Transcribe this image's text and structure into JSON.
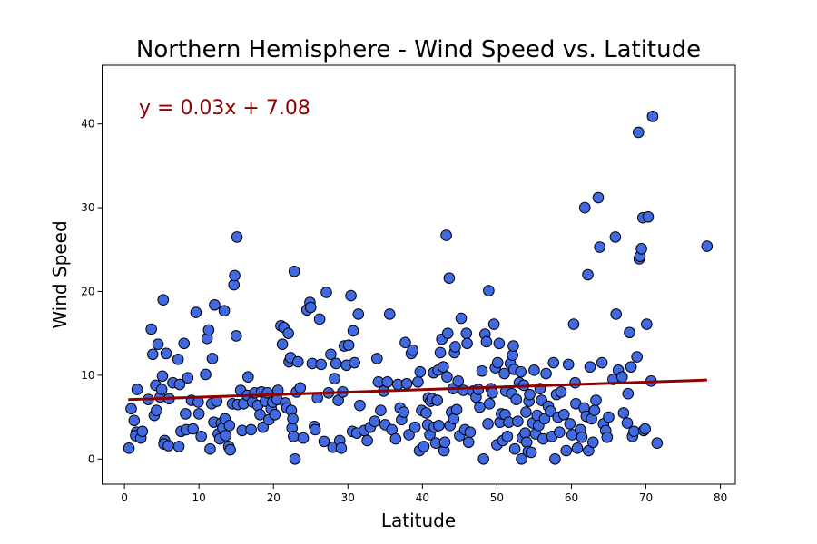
{
  "chart_data": {
    "type": "scatter",
    "title": "Northern Hemisphere - Wind Speed vs. Latitude",
    "xlabel": "Latitude",
    "ylabel": "Wind Speed",
    "xlim": [
      -3,
      82
    ],
    "ylim": [
      -3,
      47
    ],
    "xticks": [
      0,
      10,
      20,
      30,
      40,
      50,
      60,
      70,
      80
    ],
    "yticks": [
      0,
      10,
      20,
      30,
      40
    ],
    "grid": false,
    "point_color": "#4169e1",
    "point_edge_color": "#000000",
    "regression": {
      "equation": "y = 0.03x + 7.08",
      "slope": 0.03,
      "intercept": 7.08,
      "x_range": [
        0.5,
        78.2
      ],
      "color": "#8b0000"
    },
    "points": [
      [
        0.6,
        1.3
      ],
      [
        0.9,
        6.0
      ],
      [
        1.3,
        4.6
      ],
      [
        1.7,
        8.3
      ],
      [
        1.6,
        3.2
      ],
      [
        1.5,
        2.8
      ],
      [
        2.2,
        2.5
      ],
      [
        2.4,
        3.3
      ],
      [
        3.2,
        7.1
      ],
      [
        3.6,
        15.5
      ],
      [
        3.8,
        12.5
      ],
      [
        4.2,
        8.8
      ],
      [
        4.0,
        5.2
      ],
      [
        4.3,
        5.8
      ],
      [
        4.5,
        13.7
      ],
      [
        4.8,
        7.4
      ],
      [
        5.0,
        8.3
      ],
      [
        5.2,
        19.0
      ],
      [
        5.1,
        9.9
      ],
      [
        5.4,
        2.2
      ],
      [
        5.6,
        12.6
      ],
      [
        5.3,
        1.8
      ],
      [
        5.9,
        1.6
      ],
      [
        6.0,
        7.2
      ],
      [
        6.5,
        9.1
      ],
      [
        7.2,
        11.9
      ],
      [
        7.4,
        8.9
      ],
      [
        7.6,
        3.3
      ],
      [
        7.3,
        1.5
      ],
      [
        8.0,
        13.8
      ],
      [
        8.2,
        5.4
      ],
      [
        8.3,
        3.5
      ],
      [
        8.5,
        9.7
      ],
      [
        9.0,
        7.0
      ],
      [
        9.2,
        3.6
      ],
      [
        9.6,
        17.5
      ],
      [
        9.9,
        6.8
      ],
      [
        10.0,
        5.4
      ],
      [
        10.3,
        2.7
      ],
      [
        10.9,
        10.1
      ],
      [
        11.1,
        14.4
      ],
      [
        11.3,
        15.4
      ],
      [
        11.5,
        1.2
      ],
      [
        11.7,
        6.6
      ],
      [
        11.8,
        12.0
      ],
      [
        12.0,
        4.4
      ],
      [
        12.1,
        18.4
      ],
      [
        12.4,
        6.9
      ],
      [
        12.6,
        3.0
      ],
      [
        12.8,
        2.4
      ],
      [
        13.0,
        4.3
      ],
      [
        13.2,
        3.7
      ],
      [
        13.4,
        17.7
      ],
      [
        13.5,
        4.8
      ],
      [
        13.6,
        2.8
      ],
      [
        14.0,
        1.5
      ],
      [
        14.1,
        4.0
      ],
      [
        14.2,
        1.1
      ],
      [
        14.5,
        6.6
      ],
      [
        14.7,
        20.8
      ],
      [
        14.8,
        21.9
      ],
      [
        15.0,
        14.7
      ],
      [
        15.1,
        26.5
      ],
      [
        15.2,
        6.5
      ],
      [
        15.6,
        8.2
      ],
      [
        15.8,
        3.4
      ],
      [
        16.0,
        6.6
      ],
      [
        16.5,
        7.6
      ],
      [
        16.6,
        9.8
      ],
      [
        17.0,
        3.5
      ],
      [
        17.2,
        6.8
      ],
      [
        17.5,
        7.9
      ],
      [
        17.9,
        6.4
      ],
      [
        18.2,
        5.3
      ],
      [
        18.4,
        8.0
      ],
      [
        18.6,
        3.8
      ],
      [
        18.9,
        6.9
      ],
      [
        19.2,
        7.9
      ],
      [
        19.4,
        4.7
      ],
      [
        19.7,
        6.0
      ],
      [
        19.9,
        6.8
      ],
      [
        20.2,
        5.3
      ],
      [
        20.5,
        7.1
      ],
      [
        20.6,
        8.2
      ],
      [
        21.0,
        15.9
      ],
      [
        21.2,
        13.7
      ],
      [
        21.4,
        15.7
      ],
      [
        21.6,
        6.7
      ],
      [
        21.8,
        6.1
      ],
      [
        22.0,
        15.0
      ],
      [
        22.1,
        11.6
      ],
      [
        22.3,
        12.1
      ],
      [
        22.4,
        5.8
      ],
      [
        22.5,
        3.7
      ],
      [
        22.6,
        4.8
      ],
      [
        22.7,
        2.7
      ],
      [
        22.8,
        22.4
      ],
      [
        22.9,
        0.0
      ],
      [
        23.1,
        8.0
      ],
      [
        23.3,
        11.6
      ],
      [
        23.6,
        8.5
      ],
      [
        24.0,
        2.5
      ],
      [
        24.5,
        17.8
      ],
      [
        24.9,
        18.7
      ],
      [
        25.0,
        18.1
      ],
      [
        25.2,
        11.4
      ],
      [
        25.5,
        3.9
      ],
      [
        25.6,
        3.5
      ],
      [
        25.9,
        7.3
      ],
      [
        26.2,
        16.7
      ],
      [
        26.4,
        11.3
      ],
      [
        26.8,
        2.1
      ],
      [
        27.1,
        19.9
      ],
      [
        27.4,
        7.9
      ],
      [
        27.7,
        12.5
      ],
      [
        28.0,
        1.4
      ],
      [
        28.2,
        9.6
      ],
      [
        28.4,
        11.4
      ],
      [
        28.7,
        7.0
      ],
      [
        28.9,
        2.2
      ],
      [
        29.1,
        1.3
      ],
      [
        29.3,
        8.0
      ],
      [
        29.5,
        13.5
      ],
      [
        29.8,
        11.2
      ],
      [
        30.1,
        13.6
      ],
      [
        30.4,
        19.5
      ],
      [
        30.6,
        3.3
      ],
      [
        30.7,
        15.3
      ],
      [
        30.9,
        11.5
      ],
      [
        31.2,
        3.1
      ],
      [
        31.4,
        17.3
      ],
      [
        31.6,
        6.4
      ],
      [
        32.2,
        3.4
      ],
      [
        32.6,
        2.2
      ],
      [
        33.0,
        3.8
      ],
      [
        33.6,
        4.5
      ],
      [
        33.9,
        12.0
      ],
      [
        34.1,
        9.2
      ],
      [
        34.4,
        5.8
      ],
      [
        34.8,
        8.1
      ],
      [
        35.0,
        4.1
      ],
      [
        35.3,
        9.2
      ],
      [
        35.6,
        17.3
      ],
      [
        35.9,
        3.5
      ],
      [
        36.4,
        2.4
      ],
      [
        36.7,
        8.9
      ],
      [
        37.0,
        6.1
      ],
      [
        37.2,
        4.7
      ],
      [
        37.5,
        5.6
      ],
      [
        37.7,
        13.9
      ],
      [
        37.9,
        9.0
      ],
      [
        38.2,
        2.9
      ],
      [
        38.5,
        12.6
      ],
      [
        38.7,
        13.0
      ],
      [
        39.0,
        3.8
      ],
      [
        39.4,
        9.2
      ],
      [
        39.6,
        1.0
      ],
      [
        39.7,
        10.4
      ],
      [
        39.9,
        5.8
      ],
      [
        40.2,
        1.5
      ],
      [
        40.5,
        5.5
      ],
      [
        40.7,
        4.1
      ],
      [
        40.8,
        7.3
      ],
      [
        41.0,
        2.9
      ],
      [
        41.1,
        6.9
      ],
      [
        41.3,
        7.2
      ],
      [
        41.5,
        10.3
      ],
      [
        41.6,
        3.8
      ],
      [
        41.8,
        1.9
      ],
      [
        42.0,
        7.0
      ],
      [
        42.1,
        10.6
      ],
      [
        42.2,
        4.0
      ],
      [
        42.4,
        12.7
      ],
      [
        42.6,
        14.3
      ],
      [
        42.8,
        11.0
      ],
      [
        42.9,
        1.0
      ],
      [
        43.0,
        2.0
      ],
      [
        43.2,
        26.7
      ],
      [
        43.3,
        9.8
      ],
      [
        43.4,
        15.0
      ],
      [
        43.6,
        21.6
      ],
      [
        43.7,
        4.0
      ],
      [
        43.9,
        5.6
      ],
      [
        44.1,
        8.4
      ],
      [
        44.2,
        4.8
      ],
      [
        44.3,
        12.7
      ],
      [
        44.4,
        13.4
      ],
      [
        44.6,
        5.9
      ],
      [
        44.8,
        9.3
      ],
      [
        45.0,
        2.8
      ],
      [
        45.2,
        16.8
      ],
      [
        45.5,
        8.2
      ],
      [
        45.7,
        3.5
      ],
      [
        45.9,
        15.0
      ],
      [
        46.0,
        13.8
      ],
      [
        46.2,
        2.0
      ],
      [
        46.4,
        3.2
      ],
      [
        46.8,
        8.1
      ],
      [
        47.2,
        7.4
      ],
      [
        47.5,
        8.3
      ],
      [
        47.7,
        6.2
      ],
      [
        48.0,
        10.5
      ],
      [
        48.2,
        0.0
      ],
      [
        48.4,
        14.9
      ],
      [
        48.6,
        14.0
      ],
      [
        48.8,
        4.2
      ],
      [
        48.9,
        20.1
      ],
      [
        49.0,
        6.6
      ],
      [
        49.2,
        8.4
      ],
      [
        49.4,
        7.9
      ],
      [
        49.6,
        16.1
      ],
      [
        49.8,
        10.9
      ],
      [
        50.0,
        1.7
      ],
      [
        50.1,
        11.5
      ],
      [
        50.3,
        13.8
      ],
      [
        50.4,
        4.4
      ],
      [
        50.6,
        5.4
      ],
      [
        50.8,
        2.2
      ],
      [
        51.0,
        10.2
      ],
      [
        51.1,
        5.3
      ],
      [
        51.2,
        8.1
      ],
      [
        51.4,
        2.7
      ],
      [
        51.6,
        4.4
      ],
      [
        51.8,
        11.4
      ],
      [
        52.0,
        7.8
      ],
      [
        52.1,
        12.4
      ],
      [
        52.2,
        13.5
      ],
      [
        52.3,
        10.7
      ],
      [
        52.4,
        1.2
      ],
      [
        52.6,
        7.1
      ],
      [
        52.8,
        4.5
      ],
      [
        53.0,
        9.1
      ],
      [
        53.2,
        10.4
      ],
      [
        53.3,
        0.0
      ],
      [
        53.4,
        2.5
      ],
      [
        53.6,
        8.8
      ],
      [
        53.8,
        3.1
      ],
      [
        53.9,
        5.6
      ],
      [
        54.0,
        2.0
      ],
      [
        54.2,
        0.9
      ],
      [
        54.3,
        6.9
      ],
      [
        54.4,
        7.7
      ],
      [
        54.6,
        0.8
      ],
      [
        54.8,
        4.3
      ],
      [
        55.0,
        10.6
      ],
      [
        55.2,
        3.0
      ],
      [
        55.4,
        5.2
      ],
      [
        55.6,
        4.0
      ],
      [
        55.8,
        8.4
      ],
      [
        56.0,
        7.0
      ],
      [
        56.2,
        2.4
      ],
      [
        56.4,
        4.8
      ],
      [
        56.6,
        10.2
      ],
      [
        56.9,
        6.3
      ],
      [
        57.2,
        5.7
      ],
      [
        57.4,
        2.7
      ],
      [
        57.6,
        11.5
      ],
      [
        57.8,
        0.0
      ],
      [
        58.0,
        7.7
      ],
      [
        58.2,
        5.0
      ],
      [
        58.4,
        3.2
      ],
      [
        58.6,
        8.0
      ],
      [
        59.0,
        5.3
      ],
      [
        59.3,
        1.0
      ],
      [
        59.6,
        11.3
      ],
      [
        59.8,
        4.2
      ],
      [
        60.1,
        2.9
      ],
      [
        60.3,
        16.1
      ],
      [
        60.5,
        9.1
      ],
      [
        60.6,
        6.6
      ],
      [
        60.8,
        1.3
      ],
      [
        61.2,
        3.5
      ],
      [
        61.4,
        2.6
      ],
      [
        61.7,
        6.1
      ],
      [
        61.8,
        30.0
      ],
      [
        62.0,
        5.1
      ],
      [
        62.2,
        22.0
      ],
      [
        62.3,
        1.0
      ],
      [
        62.5,
        11.0
      ],
      [
        62.7,
        4.8
      ],
      [
        62.9,
        2.0
      ],
      [
        63.1,
        5.8
      ],
      [
        63.3,
        7.0
      ],
      [
        63.6,
        31.2
      ],
      [
        63.8,
        25.3
      ],
      [
        64.1,
        11.5
      ],
      [
        64.3,
        4.2
      ],
      [
        64.6,
        3.4
      ],
      [
        64.8,
        2.6
      ],
      [
        65.0,
        5.0
      ],
      [
        65.6,
        9.5
      ],
      [
        65.9,
        26.5
      ],
      [
        66.0,
        17.3
      ],
      [
        66.3,
        10.6
      ],
      [
        66.8,
        9.8
      ],
      [
        67.0,
        5.5
      ],
      [
        67.5,
        4.3
      ],
      [
        67.6,
        7.8
      ],
      [
        67.8,
        15.1
      ],
      [
        68.0,
        11.0
      ],
      [
        68.2,
        2.7
      ],
      [
        68.4,
        3.3
      ],
      [
        68.8,
        12.2
      ],
      [
        69.0,
        39.0
      ],
      [
        69.1,
        23.9
      ],
      [
        69.2,
        24.2
      ],
      [
        69.4,
        25.1
      ],
      [
        69.6,
        28.8
      ],
      [
        69.7,
        3.4
      ],
      [
        69.9,
        3.6
      ],
      [
        70.1,
        16.1
      ],
      [
        70.3,
        28.9
      ],
      [
        70.7,
        9.3
      ],
      [
        70.9,
        40.9
      ],
      [
        71.5,
        1.9
      ],
      [
        78.2,
        25.4
      ]
    ]
  }
}
